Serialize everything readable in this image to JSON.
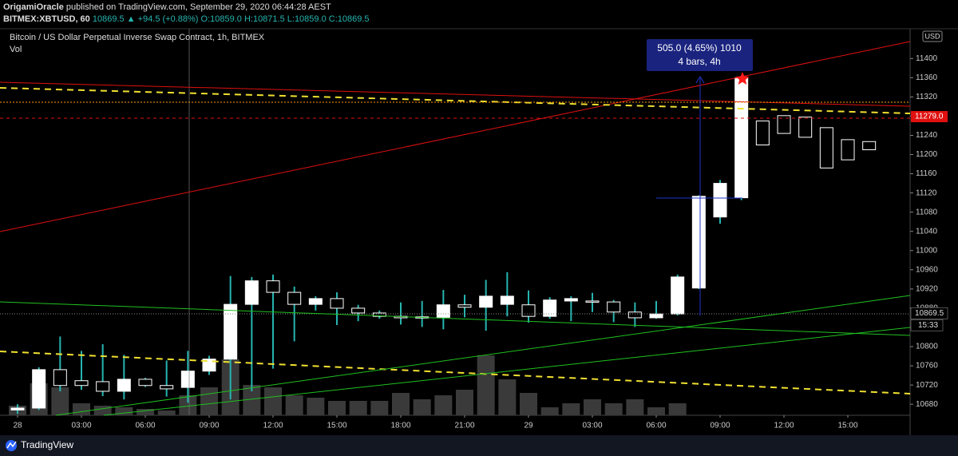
{
  "header": {
    "publisher": "OrigamiOracle",
    "published": "published on TradingView.com, September 29, 2020 06:44:28 AEST",
    "symbol": "BITMEX:XBTUSD, 60",
    "change": "10869.5 ▲ +94.5 (+0.88%)",
    "ohlc": "O:10859.0 H:10871.5 L:10859.0 C:10869.5"
  },
  "footer": {
    "brand": "TradingView"
  },
  "chart_data": {
    "type": "candlestick",
    "title": "Bitcoin / US Dollar Perpetual Inverse Swap Contract, 1h, BITMEX",
    "volume_label": "Vol",
    "currency": "USD",
    "categories": [
      "28",
      null,
      null,
      "03:00",
      null,
      null,
      "06:00",
      null,
      null,
      "09:00",
      null,
      null,
      "12:00",
      null,
      null,
      "15:00",
      null,
      null,
      "18:00",
      null,
      null,
      "21:00",
      null,
      null,
      "29",
      null,
      null,
      "03:00",
      null,
      null,
      "06:00",
      null,
      null,
      "09:00",
      null,
      null,
      "12:00",
      null,
      null,
      "15:00",
      null
    ],
    "open": [
      10668,
      10672,
      10752,
      10729,
      10727,
      10707,
      10732,
      10719,
      10715,
      10749,
      10774,
      10888,
      10937,
      10913,
      10888,
      10900,
      10880,
      10870,
      10863,
      10860,
      10861,
      10887,
      10882,
      10888,
      10887,
      10863,
      10895,
      10895,
      10893,
      10872,
      10860,
      10868,
      10922,
      11070,
      11110,
      11270,
      11281,
      11278,
      11256,
      11231,
      11227
    ],
    "high": [
      10680,
      10757,
      10821,
      10791,
      10805,
      10783,
      10735,
      10771,
      10791,
      10781,
      10947,
      10945,
      10950,
      10925,
      10905,
      10913,
      10887,
      10875,
      10892,
      10895,
      10918,
      10908,
      10939,
      10955,
      10917,
      10903,
      10905,
      10912,
      10897,
      10892,
      10895,
      10950,
      11115,
      11147,
      11361,
      11270,
      11281,
      11278,
      11256,
      11231,
      11227
    ],
    "low": [
      10660,
      10668,
      10707,
      10710,
      10697,
      10690,
      10716,
      10696,
      10683,
      10741,
      10690,
      10707,
      10754,
      10811,
      10875,
      10845,
      10853,
      10858,
      10846,
      10841,
      10836,
      10861,
      10833,
      10863,
      10850,
      10858,
      10853,
      10872,
      10851,
      10841,
      10858,
      10865,
      10920,
      11056,
      11105,
      11219,
      11244,
      11236,
      11172,
      11189,
      11210
    ],
    "close": [
      10672,
      10752,
      10719,
      10719,
      10707,
      10732,
      10719,
      10712,
      10749,
      10774,
      10888,
      10937,
      10913,
      10888,
      10900,
      10880,
      10870,
      10863,
      10860,
      10862,
      10887,
      10882,
      10905,
      10905,
      10863,
      10897,
      10900,
      10893,
      10872,
      10860,
      10868,
      10945,
      11113,
      11140,
      11360,
      11220,
      11244,
      11236,
      11172,
      11189,
      11210
    ],
    "volume": [
      12,
      40,
      35,
      15,
      12,
      10,
      8,
      6,
      25,
      35,
      70,
      38,
      35,
      25,
      22,
      18,
      18,
      18,
      28,
      20,
      25,
      32,
      75,
      45,
      28,
      10,
      15,
      20,
      15,
      20,
      10,
      15,
      null,
      null,
      null,
      null,
      null,
      null,
      null,
      null,
      null
    ],
    "ylim": [
      10657,
      11462
    ],
    "yticks": [
      11400,
      11360,
      11320,
      11280,
      11240,
      11200,
      11160,
      11120,
      11080,
      11040,
      11000,
      10960,
      10920,
      10880,
      10840,
      10800,
      10760,
      10720,
      10680
    ],
    "up_color": "#ffffff",
    "down_color": "#000000",
    "wick_color": "#26b5b0",
    "volume_color": "#3a3a3a",
    "last_price": {
      "value": 11279,
      "label": "11279.0"
    },
    "cursor_price": {
      "value": 10869.5,
      "label": "10869.5"
    },
    "countdown": "15:33",
    "measure": {
      "line1": "505.0 (4.65%) 1010",
      "line2": "4 bars, 4h"
    }
  }
}
